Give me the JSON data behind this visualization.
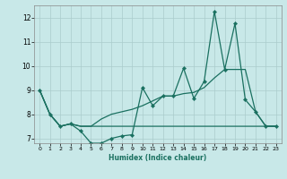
{
  "xlabel": "Humidex (Indice chaleur)",
  "xlim": [
    -0.5,
    23.5
  ],
  "ylim": [
    6.8,
    12.5
  ],
  "xticks": [
    0,
    1,
    2,
    3,
    4,
    5,
    6,
    7,
    8,
    9,
    10,
    11,
    12,
    13,
    14,
    15,
    16,
    17,
    18,
    19,
    20,
    21,
    22,
    23
  ],
  "yticks": [
    7,
    8,
    9,
    10,
    11,
    12
  ],
  "bg_color": "#c8e8e8",
  "grid_color": "#aacccc",
  "line_color": "#1a7060",
  "line1_y": [
    9.0,
    8.0,
    7.5,
    7.6,
    7.3,
    6.8,
    6.8,
    7.0,
    7.1,
    7.15,
    9.1,
    8.35,
    8.75,
    8.75,
    9.9,
    8.65,
    9.35,
    12.25,
    9.85,
    11.75,
    8.6,
    8.1,
    7.5,
    7.5
  ],
  "line2_y": [
    9.0,
    8.0,
    7.5,
    7.6,
    7.5,
    7.5,
    7.8,
    8.0,
    8.1,
    8.2,
    8.35,
    8.55,
    8.75,
    8.75,
    8.85,
    8.9,
    9.1,
    9.5,
    9.85,
    9.85,
    9.85,
    8.1,
    7.5,
    7.5
  ],
  "line3_y": [
    9.0,
    8.0,
    7.5,
    7.6,
    7.5,
    7.5,
    7.5,
    7.5,
    7.5,
    7.5,
    7.5,
    7.5,
    7.5,
    7.5,
    7.5,
    7.5,
    7.5,
    7.5,
    7.5,
    7.5,
    7.5,
    7.5,
    7.5,
    7.5
  ]
}
